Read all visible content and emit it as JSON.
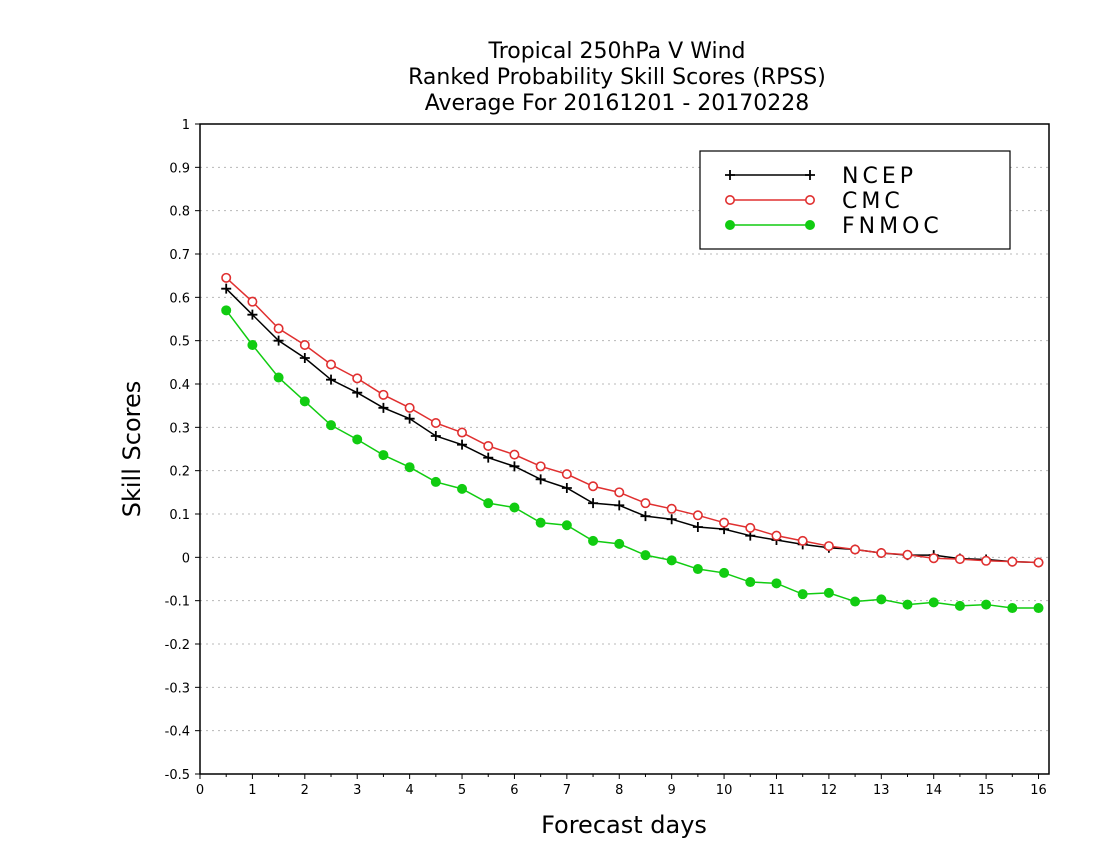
{
  "chart_data": {
    "type": "line",
    "title": [
      "Tropical 250hPa V Wind",
      "Ranked Probability Skill Scores (RPSS)",
      " Average For 20161201 - 20170228"
    ],
    "xlabel": "Forecast days",
    "ylabel": "Skill Scores",
    "xlim": [
      0,
      16.2
    ],
    "ylim": [
      -0.5,
      1
    ],
    "xticks": [
      0,
      1,
      2,
      3,
      4,
      5,
      6,
      7,
      8,
      9,
      10,
      11,
      12,
      13,
      14,
      15,
      16
    ],
    "yticks": [
      -0.5,
      -0.4,
      -0.3,
      -0.2,
      -0.1,
      0,
      0.1,
      0.2,
      0.3,
      0.4,
      0.5,
      0.6,
      0.7,
      0.8,
      0.9,
      1
    ],
    "grid": true,
    "legend_position": "top-right",
    "x": [
      0.5,
      1,
      1.5,
      2,
      2.5,
      3,
      3.5,
      4,
      4.5,
      5,
      5.5,
      6,
      6.5,
      7,
      7.5,
      8,
      8.5,
      9,
      9.5,
      10,
      10.5,
      11,
      11.5,
      12,
      12.5,
      13,
      13.5,
      14,
      14.5,
      15,
      15.5,
      16
    ],
    "series": [
      {
        "name": "NCEP",
        "color": "#000000",
        "marker": "plus",
        "values": [
          0.62,
          0.56,
          0.5,
          0.46,
          0.41,
          0.38,
          0.345,
          0.32,
          0.28,
          0.26,
          0.23,
          0.21,
          0.18,
          0.16,
          0.125,
          0.12,
          0.095,
          0.088,
          0.07,
          0.065,
          0.05,
          0.04,
          0.03,
          0.022,
          0.018,
          0.01,
          0.005,
          0.005,
          -0.003,
          -0.005,
          -0.01,
          -0.012
        ]
      },
      {
        "name": "CMC",
        "color": "#e03030",
        "marker": "open-circle",
        "values": [
          0.645,
          0.59,
          0.528,
          0.49,
          0.445,
          0.413,
          0.375,
          0.345,
          0.31,
          0.288,
          0.257,
          0.237,
          0.21,
          0.192,
          0.164,
          0.15,
          0.125,
          0.112,
          0.097,
          0.08,
          0.068,
          0.05,
          0.038,
          0.026,
          0.018,
          0.01,
          0.006,
          -0.002,
          -0.004,
          -0.008,
          -0.01,
          -0.012
        ]
      },
      {
        "name": "FNMOC",
        "color": "#11cc11",
        "marker": "filled-circle",
        "values": [
          0.57,
          0.49,
          0.415,
          0.36,
          0.305,
          0.272,
          0.236,
          0.208,
          0.174,
          0.158,
          0.125,
          0.115,
          0.08,
          0.074,
          0.038,
          0.031,
          0.005,
          -0.007,
          -0.027,
          -0.036,
          -0.057,
          -0.06,
          -0.085,
          -0.082,
          -0.102,
          -0.097,
          -0.109,
          -0.104,
          -0.112,
          -0.109,
          -0.117,
          -0.117
        ]
      }
    ]
  }
}
